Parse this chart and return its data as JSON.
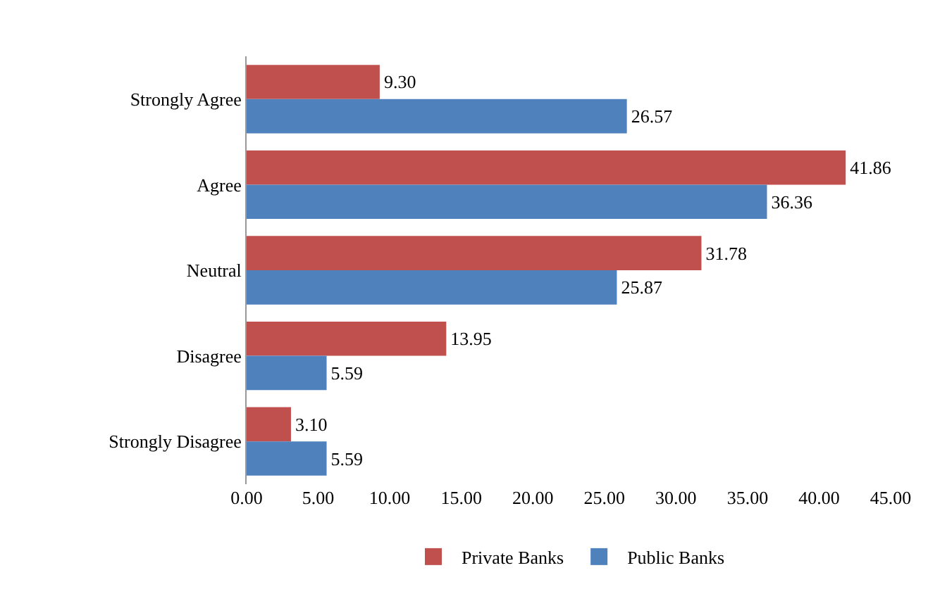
{
  "chart_data": {
    "type": "bar",
    "orientation": "horizontal",
    "categories": [
      "Strongly Agree",
      "Agree",
      "Neutral",
      "Disagree",
      "Strongly Disagree"
    ],
    "series": [
      {
        "name": "Private Banks",
        "color": "#c0504d",
        "values": [
          9.3,
          41.86,
          31.78,
          13.95,
          3.1
        ],
        "value_labels": [
          "9.30",
          "41.86",
          "31.78",
          "13.95",
          "3.10"
        ]
      },
      {
        "name": "Public Banks",
        "color": "#4f81bd",
        "values": [
          26.57,
          36.36,
          25.87,
          5.59,
          5.59
        ],
        "value_labels": [
          "26.57",
          "36.36",
          "25.87",
          "5.59",
          "5.59"
        ]
      }
    ],
    "xlim": [
      0,
      45
    ],
    "xticks": [
      {
        "value": 0,
        "label": "0.00"
      },
      {
        "value": 5,
        "label": "5.00"
      },
      {
        "value": 10,
        "label": "10.00"
      },
      {
        "value": 15,
        "label": "15.00"
      },
      {
        "value": 20,
        "label": "20.00"
      },
      {
        "value": 25,
        "label": "25.00"
      },
      {
        "value": 30,
        "label": "30.00"
      },
      {
        "value": 35,
        "label": "35.00"
      },
      {
        "value": 40,
        "label": "40.00"
      },
      {
        "value": 45,
        "label": "45.00"
      }
    ],
    "grid": false,
    "legend": "bottom"
  }
}
